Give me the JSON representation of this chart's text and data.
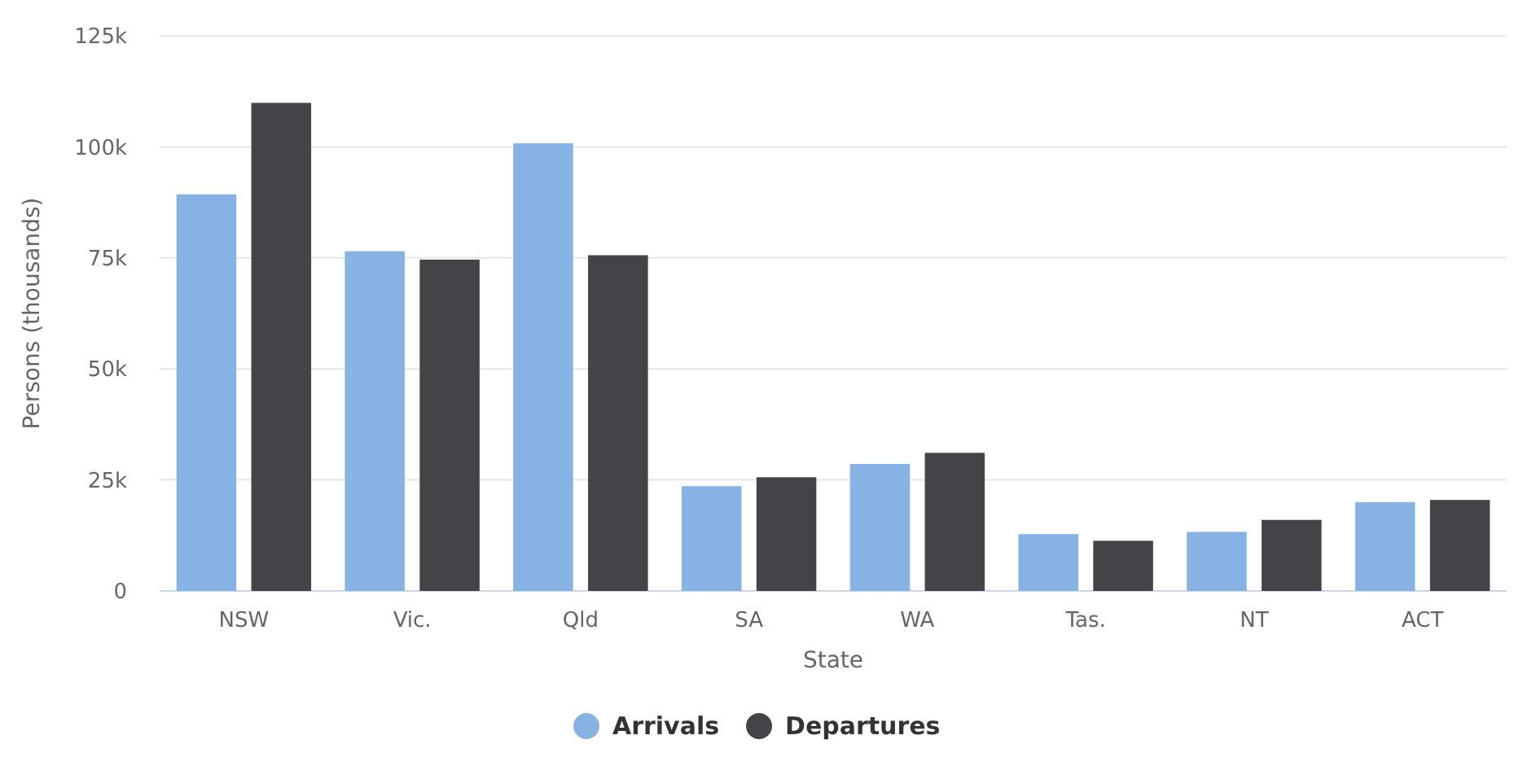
{
  "chart_data": {
    "type": "bar",
    "xlabel": "State",
    "ylabel": "Persons (thousands)",
    "categories": [
      "NSW",
      "Vic.",
      "Qld",
      "SA",
      "WA",
      "Tas.",
      "NT",
      "ACT"
    ],
    "series": [
      {
        "name": "Arrivals",
        "color": "#86b2e4",
        "values": [
          89.3,
          76.5,
          100.8,
          23.6,
          28.6,
          12.8,
          13.3,
          20.0
        ]
      },
      {
        "name": "Departures",
        "color": "#434348",
        "values": [
          109.9,
          74.6,
          75.6,
          25.6,
          31.1,
          11.3,
          16.0,
          20.5
        ]
      }
    ],
    "ylim": [
      0,
      125
    ],
    "yticks": [
      {
        "value": 0,
        "label": "0"
      },
      {
        "value": 25,
        "label": "25k"
      },
      {
        "value": 50,
        "label": "50k"
      },
      {
        "value": 75,
        "label": "75k"
      },
      {
        "value": 100,
        "label": "100k"
      },
      {
        "value": 125,
        "label": "125k"
      }
    ],
    "grid": "y",
    "legend": "bottom"
  }
}
